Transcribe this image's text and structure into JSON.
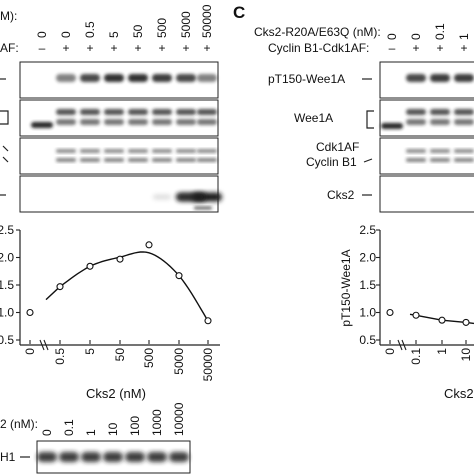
{
  "left": {
    "conc_header_tail": "M):",
    "cdk_header_tail": "AF:",
    "conc_values": [
      "0",
      "0",
      "0.5",
      "5",
      "50",
      "500",
      "5000",
      "50000"
    ],
    "cdk_signs": [
      "–",
      "+",
      "+",
      "+",
      "+",
      "+",
      "+",
      "+"
    ],
    "xlabel": "Cks2 (nM)",
    "bottom_header_tail": "2 (nM):",
    "bottom_conc": [
      "0",
      "0.1",
      "1",
      "10",
      "100",
      "1000",
      "10000"
    ],
    "h1_label": "H1"
  },
  "right": {
    "panel_letter": "C",
    "conc_header": "Cks2-R20A/E63Q (nM):",
    "conc_values": [
      "0",
      "0",
      "0.1",
      "1"
    ],
    "cdk_header": "Cyclin B1-Cdk1AF:",
    "cdk_signs": [
      "–",
      "+",
      "+",
      "+"
    ],
    "blot_labels": {
      "pt150": "pT150-Wee1A",
      "wee1a": "Wee1A",
      "cdk1af": "Cdk1AF",
      "cyclinb1": "Cyclin B1",
      "cks2": "Cks2"
    },
    "ylabel": "pT150-Wee1A",
    "xlabel_partial": "Cks2"
  },
  "chart_data": [
    {
      "type": "scatter",
      "title": "",
      "xlabel": "Cks2 (nM)",
      "ylabel": "",
      "categories": [
        "0",
        "0.5",
        "5",
        "50",
        "500",
        "5000",
        "50000"
      ],
      "values": [
        1.0,
        1.47,
        1.84,
        1.97,
        2.23,
        1.67,
        0.85
      ],
      "ylim": [
        0.5,
        2.5
      ],
      "yticks": [
        "0.5",
        "1.0",
        "1.5",
        "2.0",
        "2.5"
      ],
      "fit_curve": true,
      "axis_break": true
    },
    {
      "type": "scatter",
      "title": "",
      "xlabel": "Cks2",
      "ylabel": "pT150-Wee1A",
      "categories": [
        "0",
        "0.1",
        "1",
        "10"
      ],
      "values": [
        1.0,
        0.95,
        0.86,
        0.82
      ],
      "ylim": [
        0.5,
        2.5
      ],
      "yticks": [
        "0.5",
        "1.0",
        "1.5",
        "2.0",
        "2.5"
      ],
      "fit_curve": true,
      "axis_break": true
    }
  ]
}
